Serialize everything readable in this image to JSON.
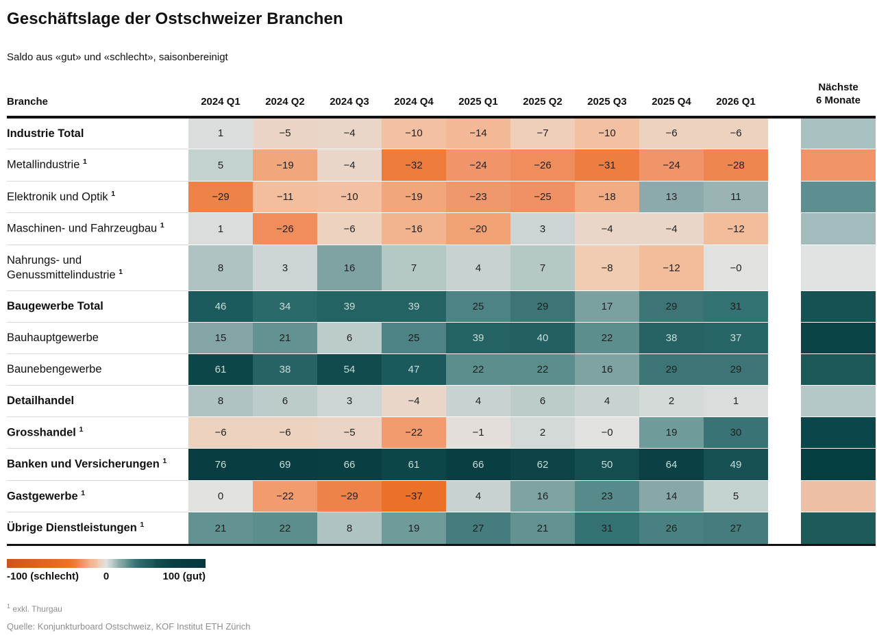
{
  "title": "Geschäftslage der Ostschweizer Branchen",
  "subtitle": "Saldo aus «gut» und «schlecht», saisonbereinigt",
  "table": {
    "row_header": "Branche",
    "next_column": {
      "line1": "Nächste",
      "line2": "6 Monate"
    }
  },
  "legend": {
    "min_label": "-100 (schlecht)",
    "mid_label": "0",
    "max_label": "100 (gut)"
  },
  "footnotes": {
    "mark": "1",
    "note": "exkl. Thurgau",
    "source": "Quelle: Konjunkturboard Ostschweiz, KOF Institut ETH Zürich"
  },
  "color_scale": {
    "light_text_threshold": 34,
    "light_text": "#c9dedb",
    "dark_text": "#1f1f1f",
    "stops": [
      [
        -100,
        "#d0521c"
      ],
      [
        -37,
        "#ec7128"
      ],
      [
        -32,
        "#ed7b3c"
      ],
      [
        -29,
        "#ee8349"
      ],
      [
        -26,
        "#f08d5c"
      ],
      [
        -24,
        "#f0946a"
      ],
      [
        -20,
        "#f1a274"
      ],
      [
        -16,
        "#f2b38f"
      ],
      [
        -12,
        "#f3bc9a"
      ],
      [
        -10,
        "#f3c0a1"
      ],
      [
        -8,
        "#f1cbb2"
      ],
      [
        -6,
        "#edd2c0"
      ],
      [
        -4,
        "#e9d6c9"
      ],
      [
        0,
        "#e1e1e0"
      ],
      [
        3,
        "#ccd5d3"
      ],
      [
        5,
        "#c3d1cf"
      ],
      [
        8,
        "#aec3c2"
      ],
      [
        13,
        "#8caaab"
      ],
      [
        16,
        "#7fa3a3"
      ],
      [
        19,
        "#6f9b9b"
      ],
      [
        22,
        "#5c8e8e"
      ],
      [
        25,
        "#4d8384"
      ],
      [
        29,
        "#3d7577"
      ],
      [
        31,
        "#347173"
      ],
      [
        34,
        "#2c696b"
      ],
      [
        40,
        "#246062"
      ],
      [
        47,
        "#1c595c"
      ],
      [
        50,
        "#144d50"
      ],
      [
        54,
        "#114b4e"
      ],
      [
        61,
        "#0d4649"
      ],
      [
        66,
        "#093e42"
      ],
      [
        76,
        "#073c40"
      ],
      [
        100,
        "#05383c"
      ]
    ]
  },
  "chart_data": {
    "type": "heatmap",
    "title": "Geschäftslage der Ostschweizer Branchen",
    "subtitle": "Saldo aus «gut» und «schlecht», saisonbereinigt",
    "value_range": [
      -100,
      100
    ],
    "columns": [
      "2024 Q1",
      "2024 Q2",
      "2024 Q3",
      "2024 Q4",
      "2025 Q1",
      "2025 Q2",
      "2025 Q3",
      "2025 Q4",
      "2026 Q1"
    ],
    "next_column_label": "Nächste 6 Monate",
    "rows": [
      {
        "label": "Industrie Total",
        "bold": true,
        "footnote": false,
        "values": [
          1,
          -5,
          -4,
          -10,
          -14,
          -7,
          -10,
          -6,
          -6
        ],
        "display": [
          "1",
          "−5",
          "−4",
          "−10",
          "−14",
          "−7",
          "−10",
          "−6",
          "−6"
        ],
        "next_6_months_color": "#a9c1c1"
      },
      {
        "label": "Metallindustrie",
        "bold": false,
        "footnote": true,
        "values": [
          5,
          -19,
          -4,
          -32,
          -24,
          -26,
          -31,
          -24,
          -28
        ],
        "display": [
          "5",
          "−19",
          "−4",
          "−32",
          "−24",
          "−26",
          "−31",
          "−24",
          "−28"
        ],
        "next_6_months_color": "#f09468"
      },
      {
        "label": "Elektronik und Optik",
        "bold": false,
        "footnote": true,
        "values": [
          -29,
          -11,
          -10,
          -19,
          -23,
          -25,
          -18,
          13,
          11
        ],
        "display": [
          "−29",
          "−11",
          "−10",
          "−19",
          "−23",
          "−25",
          "−18",
          "13",
          "11"
        ],
        "next_6_months_color": "#5d8f90"
      },
      {
        "label": "Maschinen- und Fahrzeugbau",
        "bold": false,
        "footnote": true,
        "values": [
          1,
          -26,
          -6,
          -16,
          -20,
          3,
          -4,
          -4,
          -12
        ],
        "display": [
          "1",
          "−26",
          "−6",
          "−16",
          "−20",
          "3",
          "−4",
          "−4",
          "−12"
        ],
        "next_6_months_color": "#a3bbbc"
      },
      {
        "label": "Nahrungs- und Genussmittelindustrie",
        "bold": false,
        "footnote": true,
        "values": [
          8,
          3,
          16,
          7,
          4,
          7,
          -8,
          -12,
          0
        ],
        "display": [
          "8",
          "3",
          "16",
          "7",
          "4",
          "7",
          "−8",
          "−12",
          "−0"
        ],
        "next_6_months_color": "#e0e2e1"
      },
      {
        "label": "Baugewerbe Total",
        "bold": true,
        "footnote": false,
        "values": [
          46,
          34,
          39,
          39,
          25,
          29,
          17,
          29,
          31
        ],
        "display": [
          "46",
          "34",
          "39",
          "39",
          "25",
          "29",
          "17",
          "29",
          "31"
        ],
        "next_6_months_color": "#165253"
      },
      {
        "label": "Bauhauptgewerbe",
        "bold": false,
        "footnote": false,
        "values": [
          15,
          21,
          6,
          25,
          39,
          40,
          22,
          38,
          37
        ],
        "display": [
          "15",
          "21",
          "6",
          "25",
          "39",
          "40",
          "22",
          "38",
          "37"
        ],
        "next_6_months_color": "#0a4447"
      },
      {
        "label": "Baunebengewerbe",
        "bold": false,
        "footnote": false,
        "values": [
          61,
          38,
          54,
          47,
          22,
          22,
          16,
          29,
          29
        ],
        "display": [
          "61",
          "38",
          "54",
          "47",
          "22",
          "22",
          "16",
          "29",
          "29"
        ],
        "next_6_months_color": "#1d5858"
      },
      {
        "label": "Detailhandel",
        "bold": true,
        "footnote": false,
        "values": [
          8,
          6,
          3,
          -4,
          4,
          6,
          4,
          2,
          1
        ],
        "display": [
          "8",
          "6",
          "3",
          "−4",
          "4",
          "6",
          "4",
          "2",
          "1"
        ],
        "next_6_months_color": "#b5c7c6"
      },
      {
        "label": "Grosshandel",
        "bold": true,
        "footnote": true,
        "values": [
          -6,
          -6,
          -5,
          -22,
          -1,
          2,
          0,
          19,
          30
        ],
        "display": [
          "−6",
          "−6",
          "−5",
          "−22",
          "−1",
          "2",
          "−0",
          "19",
          "30"
        ],
        "next_6_months_color": "#0b474a"
      },
      {
        "label": "Banken und Versicherungen",
        "bold": true,
        "footnote": true,
        "values": [
          76,
          69,
          66,
          61,
          66,
          62,
          50,
          64,
          49
        ],
        "display": [
          "76",
          "69",
          "66",
          "61",
          "66",
          "62",
          "50",
          "64",
          "49"
        ],
        "next_6_months_color": "#063f42"
      },
      {
        "label": "Gastgewerbe",
        "bold": true,
        "footnote": true,
        "values": [
          0,
          -22,
          -29,
          -37,
          4,
          16,
          23,
          14,
          5
        ],
        "display": [
          "0",
          "−22",
          "−29",
          "−37",
          "4",
          "16",
          "23",
          "14",
          "5"
        ],
        "next_6_months_color": "#edbfa4"
      },
      {
        "label": "Übrige Dienstleistungen",
        "bold": true,
        "footnote": true,
        "values": [
          21,
          22,
          8,
          19,
          27,
          21,
          31,
          26,
          27
        ],
        "display": [
          "21",
          "22",
          "8",
          "19",
          "27",
          "21",
          "31",
          "26",
          "27"
        ],
        "next_6_months_color": "#1d5a59"
      }
    ],
    "legend": {
      "min": -100,
      "mid": 0,
      "max": 100
    }
  }
}
